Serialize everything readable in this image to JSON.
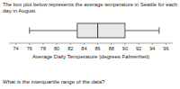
{
  "chart_data": {
    "type": "box",
    "title": "The box plot below represents the average temperature in Seattle for each",
    "subtitle": "day in August.",
    "xlabel": "Average Daily Temperature (degrees Fahrenheit)",
    "annotation": "What is the interquartile range of the data?",
    "box": {
      "whisker_low": 76,
      "q1": 83,
      "median": 86,
      "q3": 90,
      "whisker_high": 95
    },
    "color": "#e8e8e8",
    "xlim": [
      73,
      97
    ],
    "xticks": [
      74,
      76,
      78,
      80,
      82,
      84,
      86,
      88,
      90,
      92,
      94,
      96
    ]
  }
}
